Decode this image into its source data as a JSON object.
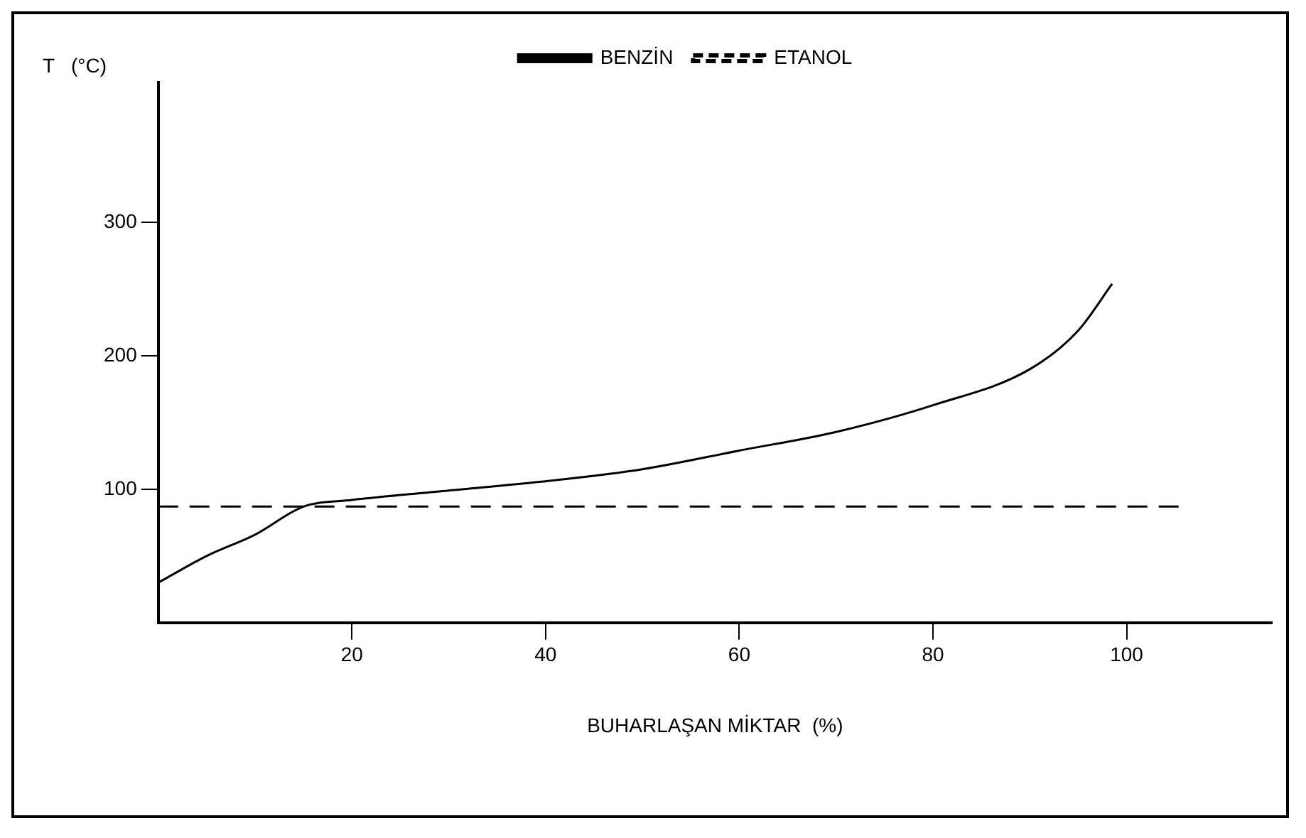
{
  "chart_data": {
    "type": "line",
    "xlabel": "BUHARLAŞAN MİKTAR  (%)",
    "ylabel": "T   (°C)",
    "xlim": [
      0,
      115
    ],
    "xticks": [
      20,
      40,
      60,
      80,
      100
    ],
    "ylim": [
      0,
      405
    ],
    "yticks": [
      100,
      200,
      300
    ],
    "grid": false,
    "legend": "top",
    "marker": "none",
    "series": [
      {
        "name": "BENZİN",
        "color": "#000000",
        "line_style": "solid",
        "x": [
          0,
          5,
          10,
          15,
          20,
          30,
          40,
          50,
          60,
          70,
          80,
          90,
          95,
          98.5
        ],
        "values": [
          30,
          50,
          66,
          87,
          92,
          99,
          106,
          115,
          129,
          143,
          163,
          190,
          219,
          254
        ]
      },
      {
        "name": "ETANOL",
        "color": "#000000",
        "line_style": "dashed",
        "x": [
          0,
          105.5
        ],
        "values": [
          87,
          87
        ]
      }
    ]
  }
}
